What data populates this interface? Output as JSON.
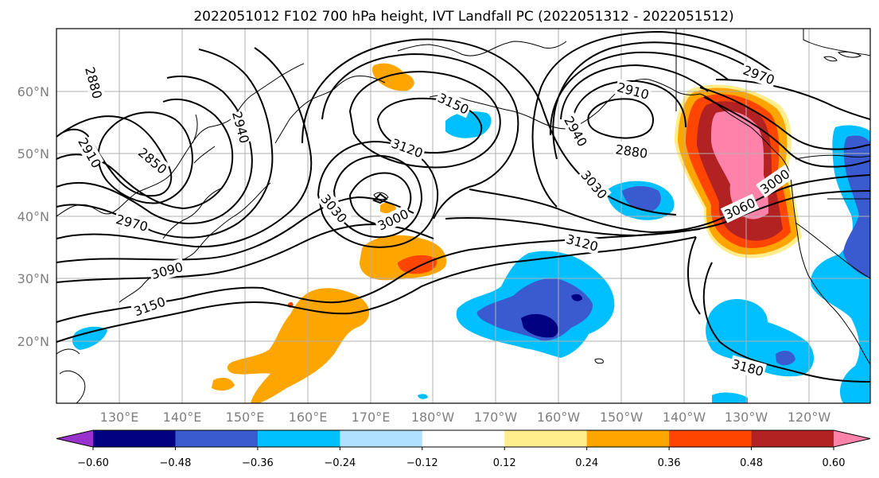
{
  "title": "2022051012 F102 700 hPa height, IVT Landfall PC (2022051312 - 2022051512)",
  "lat_labels": [
    "60°N",
    "50°N",
    "40°N",
    "30°N",
    "20°N"
  ],
  "lon_labels": [
    "130°E",
    "140°E",
    "150°E",
    "160°E",
    "170°E",
    "180°W",
    "170°W",
    "160°W",
    "150°W",
    "140°W",
    "130°W",
    "120°W"
  ],
  "colorbar": {
    "colors": [
      "#9932cc",
      "#000080",
      "#3a5bcf",
      "#00bfff",
      "#b0e2ff",
      "#ffffff",
      "#ffec8b",
      "#ffa500",
      "#ff4500",
      "#b22222",
      "#ff82ab"
    ],
    "ticks": [
      "−0.60",
      "−0.48",
      "−0.36",
      "−0.24",
      "−0.12",
      "0.12",
      "0.24",
      "0.36",
      "0.48",
      "0.60"
    ]
  },
  "contour_labels": [
    "2880",
    "2910",
    "2850",
    "2940",
    "2970",
    "3090",
    "3150",
    "3150",
    "3120",
    "3030",
    "3000",
    "2940",
    "2910",
    "2880",
    "3030",
    "3120",
    "3060",
    "3000",
    "2970",
    "3180"
  ],
  "fill_colors": {
    "orange": "#ffa500",
    "red": "#ff4500",
    "darkred": "#b22222",
    "pink": "#ff82ab",
    "yellow": "#ffec8b",
    "cyan": "#00bfff",
    "blue": "#3a5bcf",
    "navy": "#000080",
    "lightblue": "#b0e2ff"
  }
}
